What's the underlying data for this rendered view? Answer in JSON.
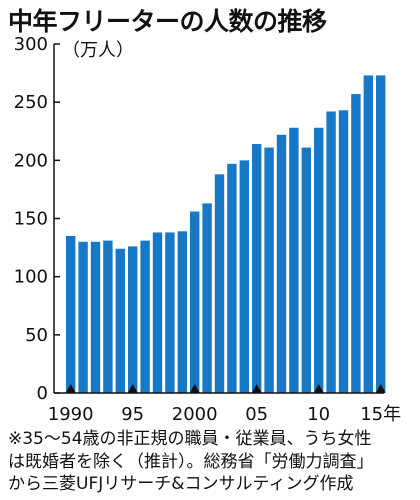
{
  "header": {
    "title": "中年フリーターの人数の推移",
    "unit": "（万人）"
  },
  "note": {
    "lines": [
      "※35～54歳の非正規の職員・従業員、うち女性",
      "は既婚者を除く（推計）。総務省「労働力調査」",
      "から三菱UFJリサーチ&コンサルティング作成"
    ]
  },
  "colors": {
    "bar": "#1878c8",
    "axis": "#111111",
    "marker": "#111111"
  },
  "chart_data": {
    "type": "bar",
    "title": "中年フリーターの人数の推移",
    "ylabel": "（万人）",
    "xlabel": "",
    "ylim": [
      0,
      300
    ],
    "yticks": [
      0,
      50,
      100,
      150,
      200,
      250,
      300
    ],
    "grid": false,
    "categories": [
      1990,
      1991,
      1992,
      1993,
      1994,
      1995,
      1996,
      1997,
      1998,
      1999,
      2000,
      2001,
      2002,
      2003,
      2004,
      2005,
      2006,
      2007,
      2008,
      2009,
      2010,
      2011,
      2012,
      2013,
      2014,
      2015
    ],
    "values": [
      135,
      130,
      130,
      131,
      124,
      126,
      131,
      138,
      138,
      139,
      156,
      163,
      188,
      197,
      200,
      214,
      211,
      222,
      228,
      211,
      228,
      242,
      243,
      257,
      273,
      273
    ],
    "xtick_labels": [
      {
        "at": 1990,
        "label": "1990"
      },
      {
        "at": 1995,
        "label": "95"
      },
      {
        "at": 2000,
        "label": "2000"
      },
      {
        "at": 2005,
        "label": "05"
      },
      {
        "at": 2010,
        "label": "10"
      },
      {
        "at": 2015,
        "label": "15年"
      }
    ]
  }
}
